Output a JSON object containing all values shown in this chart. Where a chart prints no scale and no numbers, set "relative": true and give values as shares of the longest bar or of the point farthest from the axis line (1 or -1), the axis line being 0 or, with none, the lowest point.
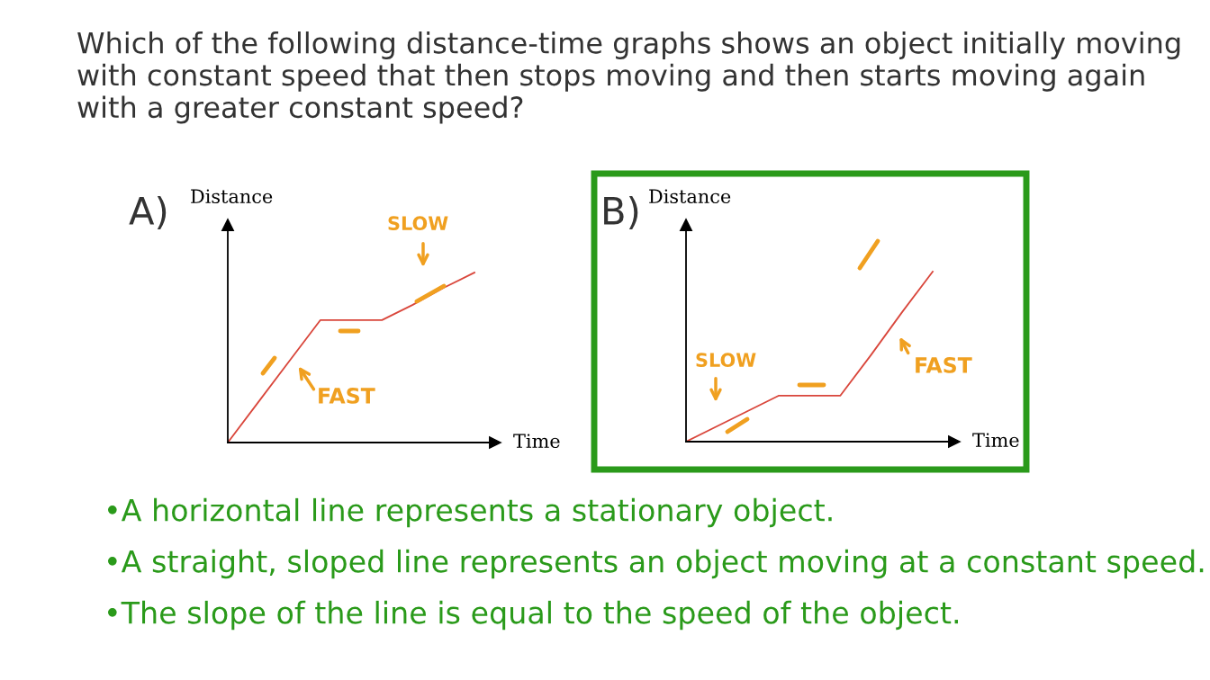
{
  "chart_data": [
    {
      "type": "line",
      "title": "A)",
      "xlabel": "Time",
      "ylabel": "Distance",
      "relative": true,
      "legend": false,
      "categories": [
        null,
        null,
        null,
        null,
        null,
        null,
        null,
        null,
        null
      ],
      "series": [
        {
          "color": "#d9463b",
          "values": [
            0,
            0.24,
            0.48,
            0.72,
            0.72,
            0.72,
            0.81,
            0.91,
            1.0
          ]
        }
      ],
      "annotations": [
        "Which of the following distance-time graphs shows an object initially moving with constant speed that then stops moving and then starts moving again with a greater constant speed?",
        "SLOW",
        "FAST"
      ]
    },
    {
      "type": "line",
      "title": "B)",
      "xlabel": "Time",
      "ylabel": "Distance",
      "relative": true,
      "legend": false,
      "categories": [
        null,
        null,
        null,
        null,
        null,
        null,
        null,
        null,
        null
      ],
      "series": [
        {
          "color": "#d9463b",
          "values": [
            0,
            0.09,
            0.18,
            0.27,
            0.27,
            0.27,
            0.51,
            0.76,
            1.0
          ]
        }
      ],
      "annotations": [
        "SLOW",
        "FAST",
        "•A horizontal line represents a stationary object.",
        "•A straight, sloped line represents an object moving at a constant speed.",
        "•The slope of the line is equal to the speed of the object."
      ]
    }
  ]
}
